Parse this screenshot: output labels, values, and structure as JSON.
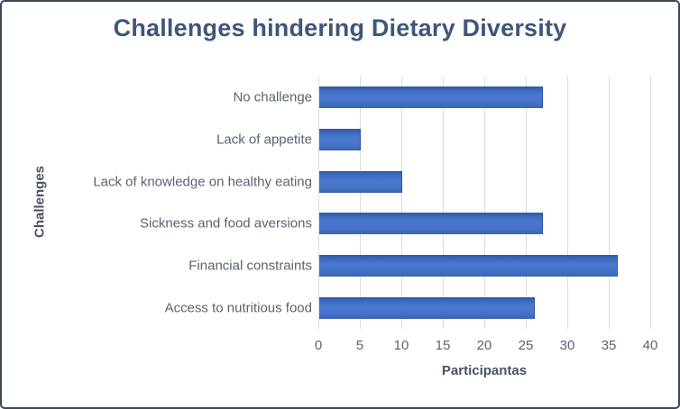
{
  "chart_data": {
    "type": "bar",
    "orientation": "horizontal",
    "title": "Challenges hindering Dietary Diversity",
    "xlabel": "Participantas",
    "ylabel": "Challenges",
    "categories": [
      "No challenge",
      "Lack of appetite",
      "Lack of knowledge on healthy eating",
      "Sickness and food aversions",
      "Financial constraints",
      "Access to nutritious food"
    ],
    "values": [
      27,
      5,
      10,
      27,
      36,
      26
    ],
    "xlim": [
      0,
      40
    ],
    "xticks": [
      0,
      5,
      10,
      15,
      20,
      25,
      30,
      35,
      40
    ],
    "grid": "vertical",
    "legend": "none",
    "colors": {
      "bar": "#4472C4",
      "bar_edge": "#2C55A0",
      "gridline": "#D9DDE3",
      "title_text": "#3E567A",
      "label_text": "#5A6370",
      "frame_border": "#3E4757",
      "background": "#FFFFFF"
    }
  }
}
